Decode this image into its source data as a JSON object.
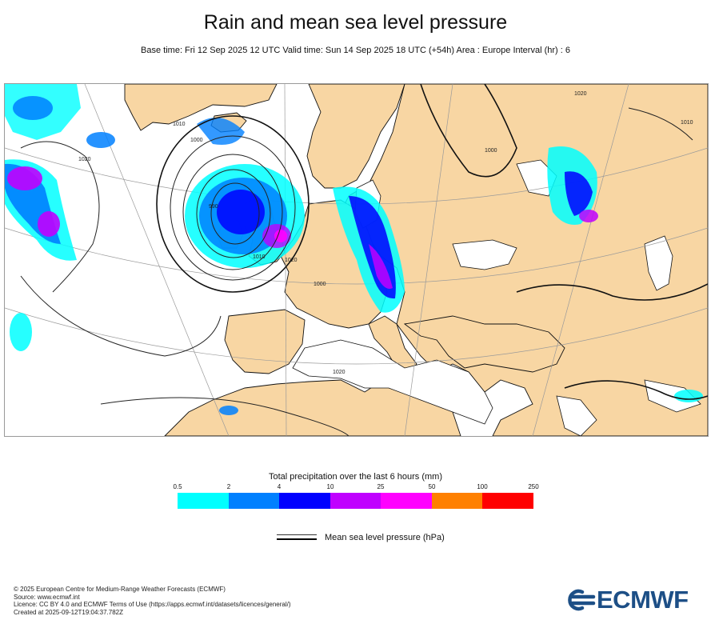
{
  "header": {
    "title": "Rain and mean sea level pressure",
    "subtitle": "Base time: Fri 12 Sep 2025 12 UTC Valid time: Sun 14 Sep 2025 18 UTC (+54h) Area : Europe Interval (hr) : 6"
  },
  "map": {
    "isobar_labels": [
      "1010",
      "1000",
      "990",
      "1020",
      "1000",
      "1020",
      "1010",
      "1020",
      "1000",
      "1010",
      "1020"
    ],
    "colors": {
      "land": "#f8d6a3",
      "sea": "#ffffff",
      "coast": "#111111",
      "isobar": "#222222",
      "graticule": "#9a9a9a"
    }
  },
  "legend": {
    "title": "Total precipitation over the last 6 hours (mm)",
    "ticks": [
      "0.5",
      "2",
      "4",
      "10",
      "25",
      "50",
      "100",
      "250"
    ],
    "colors": [
      "#00ffff",
      "#0080ff",
      "#0000ff",
      "#c000ff",
      "#ff00ff",
      "#ff8000",
      "#ff0000"
    ],
    "isobar_label": "Mean sea level pressure (hPa)"
  },
  "footer": {
    "lines": [
      "© 2025 European Centre for Medium-Range Weather Forecasts (ECMWF)",
      "Source: www.ecmwf.int",
      "Licence: CC BY 4.0 and ECMWF Terms of Use (https://apps.ecmwf.int/datasets/licences/general/)",
      "Created at 2025-09-12T19:04:37.782Z"
    ],
    "logo_text": "ECMWF",
    "logo_color": "#1d4f86"
  }
}
